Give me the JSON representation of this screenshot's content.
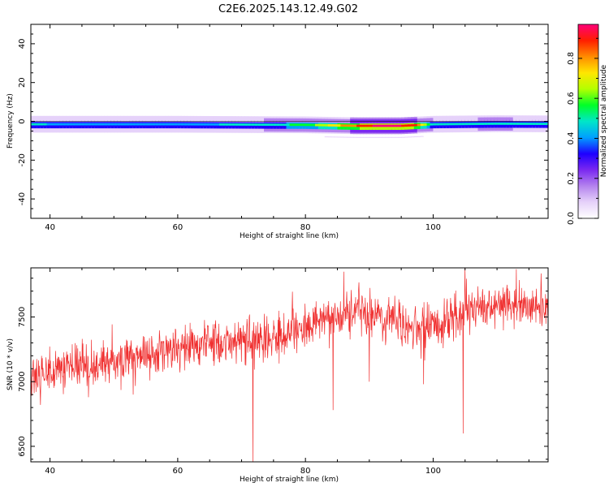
{
  "title": "C2E6.2025.143.12.49.G02",
  "chart_data": [
    {
      "type": "heatmap",
      "xlabel": "Height of straight line (km)",
      "ylabel": "Frequency (Hz)",
      "xlim": [
        37,
        118
      ],
      "ylim": [
        -50,
        50
      ],
      "x_ticks": [
        40,
        60,
        80,
        100
      ],
      "y_ticks": [
        40,
        20,
        0,
        -20,
        -40
      ],
      "grid": false,
      "colorbar": {
        "label": "Normalized spectral amplitude",
        "range": [
          0,
          0.97
        ],
        "ticks": [
          0.0,
          0.2,
          0.4,
          0.6,
          0.8
        ],
        "colormap": "rainbow (violet-blue-cyan-green-yellow-orange-red-magenta)",
        "colors": [
          "#ffffff",
          "#e6d2fa",
          "#b482ee",
          "#7a28f0",
          "#1e00ff",
          "#00a0ff",
          "#00e6c8",
          "#00ff28",
          "#b4ff00",
          "#ffe600",
          "#ff8c00",
          "#ff1e00",
          "#ff0078"
        ]
      },
      "ridge": {
        "description": "narrow band centered near 0 Hz across all heights",
        "center_frequency": [
          {
            "x": 37,
            "y": -1.5
          },
          {
            "x": 60,
            "y": -1.5
          },
          {
            "x": 80,
            "y": -1.8
          },
          {
            "x": 88,
            "y": -2.3
          },
          {
            "x": 95,
            "y": -2.3
          },
          {
            "x": 100,
            "y": -1.5
          },
          {
            "x": 110,
            "y": -1.2
          },
          {
            "x": 118,
            "y": -1.3
          }
        ],
        "peak_amplitude": [
          {
            "x": 37,
            "y": 0.45
          },
          {
            "x": 50,
            "y": 0.42
          },
          {
            "x": 70,
            "y": 0.45
          },
          {
            "x": 80,
            "y": 0.55
          },
          {
            "x": 86,
            "y": 0.78
          },
          {
            "x": 92,
            "y": 0.97
          },
          {
            "x": 97,
            "y": 0.9
          },
          {
            "x": 100,
            "y": 0.45
          },
          {
            "x": 110,
            "y": 0.5
          },
          {
            "x": 118,
            "y": 0.45
          }
        ]
      }
    },
    {
      "type": "line",
      "xlabel": "Height of straight line (km)",
      "ylabel": "SNR (10 * v/v)",
      "xlim": [
        37,
        118
      ],
      "ylim": [
        6380,
        7880
      ],
      "x_ticks": [
        40,
        60,
        80,
        100
      ],
      "y_ticks": [
        6500,
        7000,
        7500
      ],
      "grid": false,
      "series": [
        {
          "color": "#f03030",
          "trend": [
            {
              "x": 37,
              "y": 7050
            },
            {
              "x": 45,
              "y": 7120
            },
            {
              "x": 55,
              "y": 7230
            },
            {
              "x": 65,
              "y": 7300
            },
            {
              "x": 75,
              "y": 7350
            },
            {
              "x": 80,
              "y": 7430
            },
            {
              "x": 88,
              "y": 7540
            },
            {
              "x": 93,
              "y": 7480
            },
            {
              "x": 98,
              "y": 7400
            },
            {
              "x": 103,
              "y": 7500
            },
            {
              "x": 110,
              "y": 7600
            },
            {
              "x": 118,
              "y": 7580
            }
          ],
          "noise_amplitude": 130,
          "notable_dips": [
            {
              "x": 38.5,
              "y": 6820
            },
            {
              "x": 46,
              "y": 6880
            },
            {
              "x": 53,
              "y": 6900
            },
            {
              "x": 71.8,
              "y": 6380
            },
            {
              "x": 84.3,
              "y": 6780
            },
            {
              "x": 90,
              "y": 7000
            },
            {
              "x": 98.5,
              "y": 6980
            },
            {
              "x": 104.7,
              "y": 6600
            }
          ],
          "notable_peaks": [
            {
              "x": 105,
              "y": 7880
            },
            {
              "x": 86,
              "y": 7850
            },
            {
              "x": 113,
              "y": 7870
            }
          ]
        }
      ]
    }
  ]
}
